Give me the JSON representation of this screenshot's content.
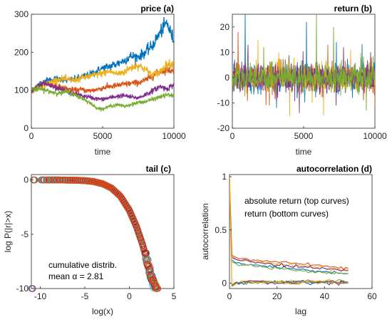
{
  "chart_data": [
    {
      "type": "line",
      "title": "price (a)",
      "xlabel": "time",
      "ylabel": "",
      "xlim": [
        0,
        10000
      ],
      "ylim": [
        0,
        300
      ],
      "xticks": [
        0,
        5000,
        10000
      ],
      "yticks": [
        0,
        100,
        200,
        300
      ],
      "x": [
        0,
        500,
        1000,
        1500,
        2000,
        2500,
        3000,
        3500,
        4000,
        4500,
        5000,
        5500,
        6000,
        6500,
        7000,
        7500,
        8000,
        8500,
        9000,
        9500,
        10000
      ],
      "series": [
        {
          "color": "#0072BD",
          "values": [
            100,
            115,
            125,
            128,
            130,
            126,
            128,
            135,
            140,
            148,
            158,
            163,
            170,
            178,
            190,
            188,
            200,
            218,
            250,
            278,
            230
          ]
        },
        {
          "color": "#D95319",
          "values": [
            100,
            112,
            118,
            115,
            108,
            104,
            100,
            102,
            98,
            101,
            106,
            110,
            112,
            116,
            118,
            120,
            126,
            138,
            148,
            155,
            150
          ]
        },
        {
          "color": "#EDB120",
          "values": [
            100,
            106,
            115,
            124,
            130,
            128,
            126,
            132,
            136,
            140,
            145,
            150,
            143,
            148,
            160,
            166,
            155,
            140,
            148,
            168,
            170
          ]
        },
        {
          "color": "#7E2F8E",
          "values": [
            100,
            110,
            118,
            108,
            102,
            96,
            90,
            86,
            82,
            78,
            76,
            80,
            84,
            86,
            82,
            80,
            88,
            98,
            110,
            104,
            115
          ]
        },
        {
          "color": "#77AC30",
          "values": [
            100,
            104,
            100,
            95,
            92,
            96,
            88,
            80,
            70,
            55,
            50,
            58,
            62,
            58,
            62,
            68,
            70,
            76,
            82,
            88,
            85
          ]
        }
      ]
    },
    {
      "type": "line",
      "title": "return (b)",
      "xlabel": "time",
      "ylabel": "",
      "xlim": [
        0,
        10000
      ],
      "ylim": [
        -20,
        25
      ],
      "xticks": [
        0,
        5000,
        10000
      ],
      "yticks": [
        -20,
        -10,
        0,
        10,
        20
      ],
      "series": [
        {
          "color": "#0072BD",
          "spikes": [
            [
              900,
              26
            ],
            [
              5200,
              22
            ],
            [
              7300,
              14
            ],
            [
              3100,
              -12
            ]
          ]
        },
        {
          "color": "#D95319",
          "spikes": [
            [
              400,
              18
            ],
            [
              2600,
              -11
            ],
            [
              6700,
              13
            ],
            [
              9200,
              -9
            ]
          ]
        },
        {
          "color": "#EDB120",
          "spikes": [
            [
              1800,
              15
            ],
            [
              6400,
              -15
            ],
            [
              8300,
              11
            ],
            [
              5600,
              -10
            ]
          ]
        },
        {
          "color": "#7E2F8E",
          "spikes": [
            [
              1100,
              13
            ],
            [
              4700,
              -14
            ],
            [
              7800,
              12
            ],
            [
              9700,
              10
            ]
          ]
        },
        {
          "color": "#77AC30",
          "spikes": [
            [
              2200,
              12
            ],
            [
              5900,
              25
            ],
            [
              7100,
              20
            ],
            [
              9400,
              -13
            ]
          ]
        }
      ]
    },
    {
      "type": "scatter",
      "title": "tail (c)",
      "xlabel": "log(x)",
      "ylabel": "log P(|r|>x)",
      "xlim": [
        -11,
        5
      ],
      "ylim": [
        -10,
        0.5
      ],
      "xticks": [
        -10,
        -5,
        0,
        5
      ],
      "yticks": [
        -10,
        -5,
        0
      ],
      "annotations": [
        "cumulative distrib.",
        "mean α = 2.81"
      ],
      "curve": [
        [
          -10.8,
          0
        ],
        [
          -8,
          0
        ],
        [
          -6,
          -0.02
        ],
        [
          -5,
          -0.06
        ],
        [
          -4,
          -0.15
        ],
        [
          -3,
          -0.35
        ],
        [
          -2,
          -0.75
        ],
        [
          -1,
          -1.5
        ],
        [
          0,
          -2.8
        ],
        [
          0.8,
          -4.3
        ],
        [
          1.5,
          -6
        ],
        [
          2,
          -7.5
        ],
        [
          2.4,
          -8.8
        ],
        [
          2.7,
          -9.6
        ],
        [
          3,
          -10
        ]
      ]
    },
    {
      "type": "line",
      "title": "autocorrelation (d)",
      "xlabel": "lag",
      "ylabel": "autocorrelation",
      "xlim": [
        0,
        60
      ],
      "ylim": [
        -0.05,
        1.02
      ],
      "xticks": [
        0,
        20,
        40,
        60
      ],
      "yticks": [
        0,
        0.5,
        1
      ],
      "annotations": [
        "absolute return (top curves)",
        "return (bottom curves)"
      ],
      "lags": [
        1,
        2,
        3,
        5,
        10,
        15,
        20,
        25,
        30,
        35,
        40,
        45,
        50
      ],
      "series": [
        {
          "color": "#0072BD",
          "values": [
            0.22,
            0.2,
            0.19,
            0.18,
            0.17,
            0.16,
            0.15,
            0.14,
            0.13,
            0.12,
            0.11,
            0.1,
            0.09
          ]
        },
        {
          "color": "#D95319",
          "values": [
            0.26,
            0.25,
            0.24,
            0.23,
            0.22,
            0.21,
            0.2,
            0.19,
            0.18,
            0.17,
            0.16,
            0.15,
            0.14
          ]
        },
        {
          "color": "#EDB120",
          "values": [
            0.25,
            0.24,
            0.22,
            0.21,
            0.2,
            0.19,
            0.18,
            0.17,
            0.16,
            0.15,
            0.14,
            0.13,
            0.12
          ]
        },
        {
          "color": "#7E2F8E",
          "values": [
            0.24,
            0.23,
            0.22,
            0.21,
            0.2,
            0.18,
            0.17,
            0.16,
            0.15,
            0.14,
            0.14,
            0.13,
            0.12
          ]
        },
        {
          "color": "#77AC30",
          "values": [
            0.2,
            0.19,
            0.18,
            0.17,
            0.16,
            0.15,
            0.14,
            0.13,
            0.12,
            0.11,
            0.1,
            0.1,
            0.09
          ]
        },
        {
          "color": "#0072BD",
          "values": [
            -0.03,
            -0.01,
            0.0,
            0.01,
            0.01,
            0.0,
            0.01,
            0.02,
            0.01,
            0.0,
            0.01,
            0.01,
            0.0
          ]
        },
        {
          "color": "#D95319",
          "values": [
            -0.02,
            0.0,
            0.01,
            0.0,
            0.01,
            0.02,
            0.01,
            0.0,
            0.01,
            0.02,
            0.01,
            0.0,
            0.01
          ]
        },
        {
          "color": "#EDB120",
          "values": [
            -0.03,
            -0.02,
            0.0,
            0.02,
            0.01,
            0.0,
            0.02,
            0.01,
            0.0,
            0.01,
            0.02,
            0.01,
            0.0
          ]
        },
        {
          "color": "#7E2F8E",
          "values": [
            -0.02,
            -0.01,
            0.01,
            0.0,
            0.02,
            0.01,
            0.0,
            0.01,
            0.02,
            0.0,
            0.01,
            0.0,
            0.01
          ]
        },
        {
          "color": "#77AC30",
          "values": [
            -0.03,
            -0.01,
            0.0,
            0.01,
            0.0,
            0.02,
            0.01,
            0.0,
            0.01,
            0.01,
            0.0,
            0.02,
            0.01
          ]
        }
      ],
      "lag0_spike": 1
    }
  ]
}
